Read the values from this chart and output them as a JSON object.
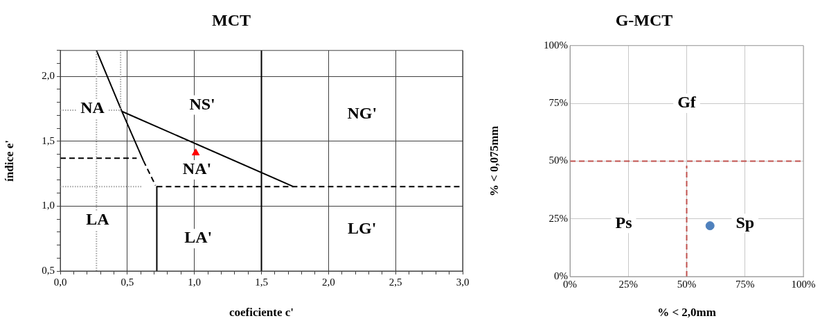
{
  "chart_data": [
    {
      "type": "scatter",
      "title": "MCT",
      "xlabel": "coeficiente c'",
      "ylabel": "índice e'",
      "xlim": [
        0,
        3
      ],
      "ylim": [
        0.5,
        2.2
      ],
      "xticks": [
        {
          "value": 0,
          "label": "0,0"
        },
        {
          "value": 0.1,
          "label": null
        },
        {
          "value": 0.2,
          "label": null
        },
        {
          "value": 0.3,
          "label": null
        },
        {
          "value": 0.4,
          "label": null
        },
        {
          "value": 0.5,
          "label": "0,5"
        },
        {
          "value": 0.6,
          "label": null
        },
        {
          "value": 0.7,
          "label": null
        },
        {
          "value": 0.8,
          "label": null
        },
        {
          "value": 0.9,
          "label": null
        },
        {
          "value": 1,
          "label": "1,0"
        },
        {
          "value": 1.1,
          "label": null
        },
        {
          "value": 1.2,
          "label": null
        },
        {
          "value": 1.3,
          "label": null
        },
        {
          "value": 1.4,
          "label": null
        },
        {
          "value": 1.5,
          "label": "1,5"
        },
        {
          "value": 1.6,
          "label": null
        },
        {
          "value": 1.7,
          "label": null
        },
        {
          "value": 1.8,
          "label": null
        },
        {
          "value": 1.9,
          "label": null
        },
        {
          "value": 2,
          "label": "2,0"
        },
        {
          "value": 2.1,
          "label": null
        },
        {
          "value": 2.2,
          "label": null
        },
        {
          "value": 2.3,
          "label": null
        },
        {
          "value": 2.4,
          "label": null
        },
        {
          "value": 2.5,
          "label": "2,5"
        },
        {
          "value": 2.6,
          "label": null
        },
        {
          "value": 2.7,
          "label": null
        },
        {
          "value": 2.8,
          "label": null
        },
        {
          "value": 2.9,
          "label": null
        },
        {
          "value": 3,
          "label": "3,0"
        }
      ],
      "yticks": [
        {
          "value": 0.5,
          "label": "0,5"
        },
        {
          "value": 0.6,
          "label": null
        },
        {
          "value": 0.7,
          "label": null
        },
        {
          "value": 0.8,
          "label": null
        },
        {
          "value": 0.9,
          "label": null
        },
        {
          "value": 1,
          "label": "1,0"
        },
        {
          "value": 1.1,
          "label": null
        },
        {
          "value": 1.2,
          "label": null
        },
        {
          "value": 1.3,
          "label": null
        },
        {
          "value": 1.4,
          "label": null
        },
        {
          "value": 1.5,
          "label": "1,5"
        },
        {
          "value": 1.6,
          "label": null
        },
        {
          "value": 1.7,
          "label": null
        },
        {
          "value": 1.8,
          "label": null
        },
        {
          "value": 1.9,
          "label": null
        },
        {
          "value": 2,
          "label": "2,0"
        },
        {
          "value": 2.1,
          "label": null
        },
        {
          "value": 2.2,
          "label": null
        }
      ],
      "grid": true,
      "legend": false,
      "series": [
        {
          "type": "line",
          "color": "#a0a0a0",
          "line_style": "dotted",
          "x": [
            0.27,
            0.27
          ],
          "values": [
            0.5,
            2.2
          ]
        },
        {
          "type": "line",
          "color": "#a0a0a0",
          "line_style": "dotted",
          "x": [
            0.45,
            0.45
          ],
          "values": [
            1.73,
            2.2
          ]
        },
        {
          "type": "line",
          "color": "#a0a0a0",
          "line_style": "dotted",
          "x": [
            0,
            0.45
          ],
          "values": [
            1.74,
            1.74
          ]
        },
        {
          "type": "line",
          "color": "#a0a0a0",
          "line_style": "dotted",
          "x": [
            0,
            0.61
          ],
          "values": [
            1.15,
            1.15
          ]
        },
        {
          "type": "line",
          "color": "#000000",
          "line_style": "solid",
          "x": [
            0.27,
            0.46,
            0.62
          ],
          "values": [
            2.2,
            1.73,
            1.35
          ]
        },
        {
          "type": "line",
          "color": "#000000",
          "line_style": "dashed",
          "x": [
            0.62,
            0.71
          ],
          "values": [
            1.35,
            1.16
          ]
        },
        {
          "type": "line",
          "color": "#000000",
          "line_style": "solid",
          "x": [
            0.46,
            1.74
          ],
          "values": [
            1.73,
            1.15
          ]
        },
        {
          "type": "line",
          "color": "#000000",
          "line_style": "dashed",
          "x": [
            0,
            0.57
          ],
          "values": [
            1.37,
            1.37
          ]
        },
        {
          "type": "line",
          "color": "#000000",
          "line_style": "dashed",
          "x": [
            0.72,
            3
          ],
          "values": [
            1.15,
            1.15
          ]
        },
        {
          "type": "line",
          "color": "#000000",
          "line_style": "solid",
          "x": [
            0.72,
            0.72
          ],
          "values": [
            1.15,
            0.5
          ]
        },
        {
          "type": "line",
          "color": "#000000",
          "line_style": "solid",
          "x": [
            1.5,
            1.5
          ],
          "values": [
            0.5,
            2.2
          ]
        },
        {
          "type": "scatter",
          "color": "#ff0000",
          "marker": "triangle",
          "x": [
            1.01
          ],
          "values": [
            1.41
          ]
        }
      ],
      "annotations": [
        "NA",
        "NS'",
        "NG'",
        "NA'",
        "LA",
        "LA'",
        "LG'"
      ]
    },
    {
      "type": "scatter",
      "title": "G-MCT",
      "xlabel": "% < 2,0mm",
      "ylabel": "% < 0,075mm",
      "xlim": [
        0,
        100
      ],
      "ylim": [
        0,
        100
      ],
      "xticks": [
        {
          "value": 0,
          "label": "0%"
        },
        {
          "value": 25,
          "label": "25%"
        },
        {
          "value": 50,
          "label": "50%"
        },
        {
          "value": 75,
          "label": "75%"
        },
        {
          "value": 100,
          "label": "100%"
        }
      ],
      "yticks": [
        {
          "value": 0,
          "label": "0%"
        },
        {
          "value": 25,
          "label": "25%"
        },
        {
          "value": 50,
          "label": "50%"
        },
        {
          "value": 75,
          "label": "75%"
        },
        {
          "value": 100,
          "label": "100%"
        }
      ],
      "grid": true,
      "legend": false,
      "series": [
        {
          "type": "line",
          "color": "#c0504d",
          "line_style": "dashed",
          "x": [
            0,
            100
          ],
          "values": [
            50,
            50
          ]
        },
        {
          "type": "line",
          "color": "#c0504d",
          "line_style": "dashed",
          "x": [
            50,
            50
          ],
          "values": [
            0,
            48
          ]
        },
        {
          "type": "scatter",
          "color": "#4f81bd",
          "marker": "circle",
          "x": [
            60
          ],
          "values": [
            22
          ]
        }
      ],
      "annotations": [
        "Gf",
        "Ps",
        "Sp"
      ]
    }
  ]
}
